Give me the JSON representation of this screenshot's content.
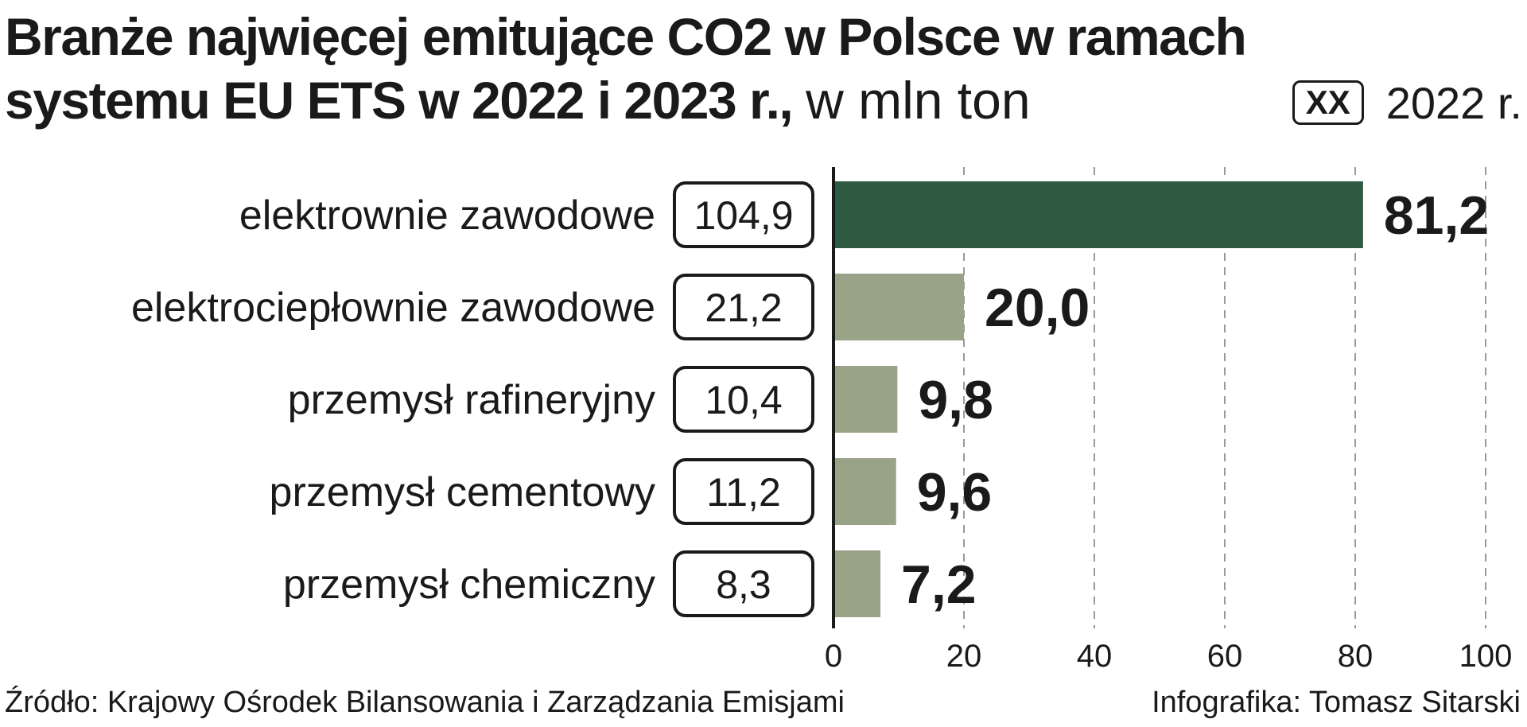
{
  "header": {
    "title_bold": "Branże najwięcej emitujące CO2 w Polsce w ramach systemu EU ETS w 2022 i 2023 r.,",
    "title_unit": "w mln ton"
  },
  "legend": {
    "box_label": "XX",
    "text": "2022 r."
  },
  "footer": {
    "source": "Źródło: Krajowy Ośrodek Bilansowania i Zarządzania Emisjami",
    "credit": "Infografika: Tomasz Sitarski"
  },
  "colors": {
    "highlight_bar": "#2e5a41",
    "bar": "#98a387",
    "grid": "#9a9a9a",
    "text": "#1a1a1a"
  },
  "chart_data": {
    "type": "bar",
    "orientation": "horizontal",
    "categories": [
      "elektrownie zawodowe",
      "elektrociepłownie zawodowe",
      "przemysł rafineryjny",
      "przemysł cementowy",
      "przemysł chemiczny"
    ],
    "series": [
      {
        "name": "2022 r.",
        "values": [
          104.9,
          21.2,
          10.4,
          11.2,
          8.3
        ],
        "labels": [
          "104,9",
          "21,2",
          "10,4",
          "11,2",
          "8,3"
        ]
      },
      {
        "values": [
          81.2,
          20.0,
          9.8,
          9.6,
          7.2
        ],
        "labels": [
          "81,2",
          "20,0",
          "9,8",
          "9,6",
          "7,2"
        ]
      }
    ],
    "xlim": [
      0,
      100
    ],
    "xticks": [
      0,
      20,
      40,
      60,
      80,
      100
    ],
    "grid": true,
    "highlight_index": 0
  }
}
